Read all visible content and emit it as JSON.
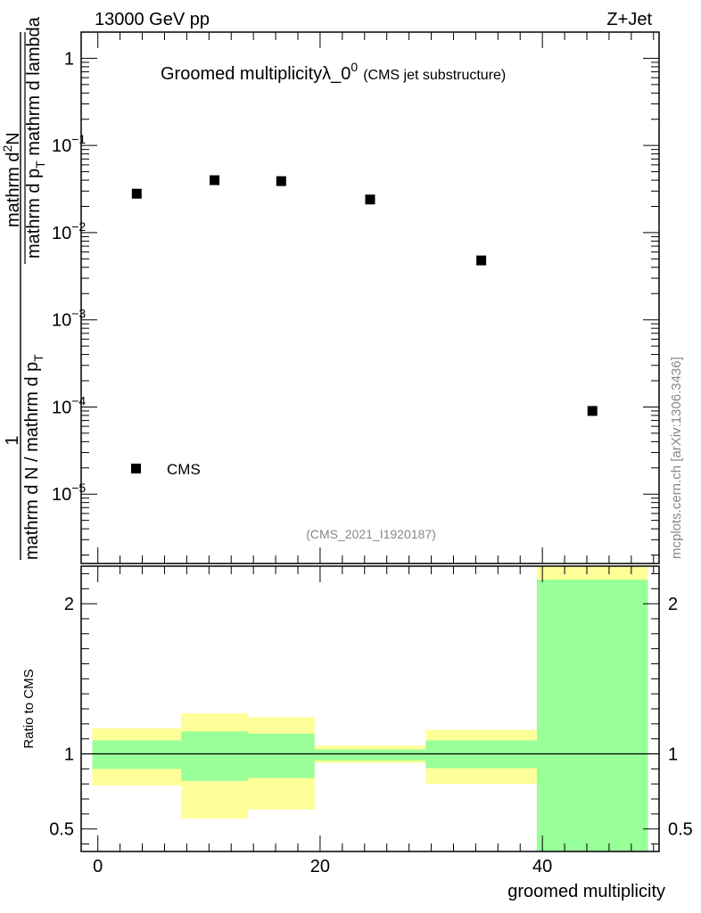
{
  "header": {
    "left": "13000 GeV pp",
    "right": "Z+Jet"
  },
  "side_label": "mcplots.cern.ch [arXiv:1306.3436]",
  "chart_data": [
    {
      "type": "scatter",
      "title_main": "Groomed multiplicity",
      "title_lambda": "λ_0",
      "title_sup": "0",
      "title_paren": "(CMS jet substructure)",
      "analysis_label": "(CMS_2021_I1920187)",
      "ylabel_parts": {
        "numerator": "1",
        "denominator": "mathrm d N / mathrm d p",
        "denominator_sub": "T",
        "inner_numerator": "mathrm d",
        "inner_numerator_sup": "2",
        "inner_numerator_end": "N",
        "inner_denominator": "mathrm d p",
        "inner_denominator_sub": "T",
        "inner_denominator_end": " mathrm d lambda"
      },
      "yscale": "log",
      "ylim": [
        1.6e-06,
        2.0
      ],
      "xlim": [
        -1.5,
        50.5
      ],
      "yticks": [
        {
          "value": 1,
          "base": "1",
          "exp": ""
        },
        {
          "value": 0.1,
          "base": "10",
          "exp": "−1"
        },
        {
          "value": 0.01,
          "base": "10",
          "exp": "−2"
        },
        {
          "value": 0.001,
          "base": "10",
          "exp": "−3"
        },
        {
          "value": 0.0001,
          "base": "10",
          "exp": "−4"
        },
        {
          "value": 1e-05,
          "base": "10",
          "exp": "−5"
        }
      ],
      "series": [
        {
          "name": "CMS",
          "color": "#000000",
          "points": [
            {
              "x": 3.5,
              "y": 0.028
            },
            {
              "x": 10.5,
              "y": 0.04
            },
            {
              "x": 16.5,
              "y": 0.039
            },
            {
              "x": 24.5,
              "y": 0.024
            },
            {
              "x": 34.5,
              "y": 0.0048
            },
            {
              "x": 44.5,
              "y": 9e-05
            }
          ]
        }
      ],
      "legend": {
        "label": "CMS",
        "placement": "bottom-left"
      }
    },
    {
      "type": "area",
      "ylabel": "Ratio to CMS",
      "xlabel": "groomed multiplicity",
      "ylim": [
        0.35,
        2.25
      ],
      "xlim": [
        -1.5,
        50.5
      ],
      "xticks": [
        0,
        20,
        40
      ],
      "yticks": [
        0.5,
        1,
        2
      ],
      "reference_line": 1,
      "band_colors": {
        "outer": "#ffff99",
        "inner": "#99ff99"
      },
      "bins": [
        {
          "x_low": -0.5,
          "x_high": 7.5,
          "outer": [
            0.79,
            1.17
          ],
          "inner": [
            0.9,
            1.09
          ]
        },
        {
          "x_low": 7.5,
          "x_high": 13.5,
          "outer": [
            0.57,
            1.27
          ],
          "inner": [
            0.82,
            1.15
          ]
        },
        {
          "x_low": 13.5,
          "x_high": 19.5,
          "outer": [
            0.63,
            1.245
          ],
          "inner": [
            0.84,
            1.135
          ]
        },
        {
          "x_low": 19.5,
          "x_high": 29.5,
          "outer": [
            0.94,
            1.055
          ],
          "inner": [
            0.955,
            1.03
          ]
        },
        {
          "x_low": 29.5,
          "x_high": 39.5,
          "outer": [
            0.8,
            1.16
          ],
          "inner": [
            0.905,
            1.09
          ]
        },
        {
          "x_low": 39.5,
          "x_high": 49.5,
          "outer": [
            0.35,
            2.25
          ],
          "inner": [
            0.35,
            2.16
          ]
        }
      ]
    }
  ]
}
